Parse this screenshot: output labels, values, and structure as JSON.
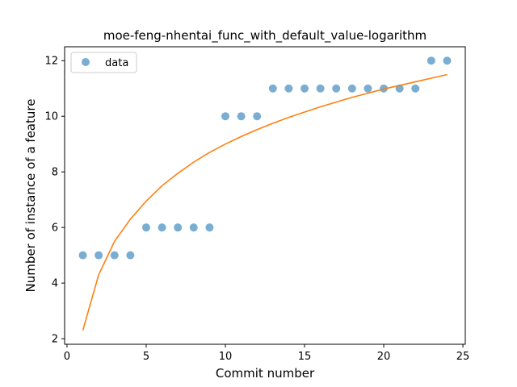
{
  "chart_data": {
    "type": "scatter",
    "title": "moe-feng-nhentai_func_with_default_value-logarithm",
    "xlabel": "Commit number",
    "ylabel": "Number of instance of a feature",
    "xlim": [
      -0.15,
      25.15
    ],
    "ylim": [
      1.8,
      12.5
    ],
    "xticks": [
      0,
      5,
      10,
      15,
      20,
      25
    ],
    "yticks": [
      2,
      4,
      6,
      8,
      10,
      12
    ],
    "grid": false,
    "legend_position": "top-left",
    "series": [
      {
        "name": "data",
        "kind": "scatter",
        "color": "#1f77b4",
        "x": [
          1,
          2,
          3,
          4,
          5,
          6,
          7,
          8,
          9,
          10,
          11,
          12,
          13,
          14,
          15,
          16,
          17,
          18,
          19,
          20,
          21,
          22,
          23,
          24
        ],
        "y": [
          5,
          5,
          5,
          5,
          6,
          6,
          6,
          6,
          6,
          10,
          10,
          10,
          11,
          11,
          11,
          11,
          11,
          11,
          11,
          11,
          11,
          11,
          12,
          12
        ]
      },
      {
        "kind": "line",
        "color": "#ff7f0e",
        "x": [
          1,
          2,
          3,
          4,
          5,
          6,
          7,
          8,
          9,
          10,
          11,
          12,
          13,
          14,
          15,
          16,
          17,
          18,
          19,
          20,
          21,
          22,
          23,
          24
        ],
        "y": [
          2.3,
          4.3,
          5.5,
          6.3,
          6.95,
          7.5,
          7.95,
          8.35,
          8.7,
          9.0,
          9.27,
          9.52,
          9.75,
          9.96,
          10.15,
          10.34,
          10.51,
          10.68,
          10.83,
          10.98,
          11.11,
          11.24,
          11.37,
          11.5
        ]
      }
    ]
  }
}
